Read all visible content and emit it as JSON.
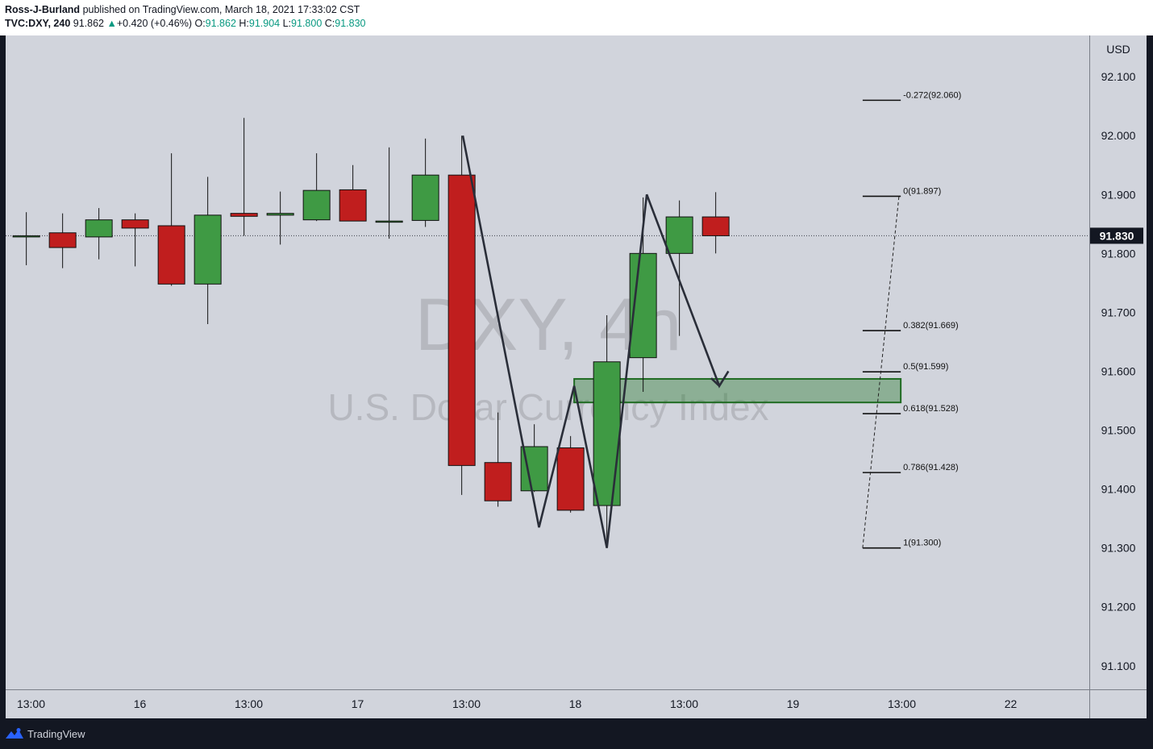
{
  "header": {
    "author": "Ross-J-Burland",
    "published_text": "published on TradingView.com, March 18, 2021 17:33:02 CST",
    "symbol": "TVC:DXY, 240",
    "last": "91.862",
    "change_arrow": "▲",
    "change": "+0.420 (+0.46%)",
    "o_label": "O:",
    "o_value": "91.862",
    "h_label": "H:",
    "h_value": "91.904",
    "l_label": "L:",
    "l_value": "91.800",
    "c_label": "C:",
    "c_value": "91.830"
  },
  "watermark": {
    "symbol": "DXY, 4h",
    "name": "U.S. Dollar Currency Index"
  },
  "footer": {
    "brand": "TradingView",
    "logo_icon": "tradingview-logo-icon"
  },
  "chart_data": {
    "type": "candlestick",
    "currency": "USD",
    "ylim": [
      91.06,
      92.17
    ],
    "y_ticks": [
      "91.100",
      "91.200",
      "91.300",
      "91.400",
      "91.500",
      "91.600",
      "91.700",
      "91.800",
      "91.900",
      "92.000",
      "92.100"
    ],
    "x_ticks": [
      "13:00",
      "16",
      "13:00",
      "17",
      "13:00",
      "18",
      "13:00",
      "19",
      "13:00",
      "22"
    ],
    "last_price_label": "91.830",
    "last_price": 91.83,
    "colors": {
      "up": "#3f9a44",
      "down": "#c01e1e",
      "fib": "#111111",
      "zone": "#2e7d32"
    },
    "candles": [
      {
        "slot": -0.13,
        "o": 91.83,
        "h": 91.87,
        "l": 91.78,
        "c": 91.83
      },
      {
        "slot": 0.87,
        "o": 91.835,
        "h": 91.868,
        "l": 91.775,
        "c": 91.81
      },
      {
        "slot": 1.87,
        "o": 91.828,
        "h": 91.877,
        "l": 91.79,
        "c": 91.857
      },
      {
        "slot": 2.87,
        "o": 91.857,
        "h": 91.868,
        "l": 91.778,
        "c": 91.843
      },
      {
        "slot": 3.87,
        "o": 91.847,
        "h": 91.97,
        "l": 91.745,
        "c": 91.748
      },
      {
        "slot": 4.87,
        "o": 91.748,
        "h": 91.93,
        "l": 91.68,
        "c": 91.865
      },
      {
        "slot": 5.87,
        "o": 91.868,
        "h": 92.03,
        "l": 91.83,
        "c": 91.863
      },
      {
        "slot": 6.87,
        "o": 91.865,
        "h": 91.905,
        "l": 91.815,
        "c": 91.868
      },
      {
        "slot": 7.87,
        "o": 91.857,
        "h": 91.97,
        "l": 91.855,
        "c": 91.907
      },
      {
        "slot": 8.87,
        "o": 91.908,
        "h": 91.95,
        "l": 91.855,
        "c": 91.855
      },
      {
        "slot": 9.87,
        "o": 91.855,
        "h": 91.98,
        "l": 91.825,
        "c": 91.855
      },
      {
        "slot": 10.87,
        "o": 91.856,
        "h": 91.995,
        "l": 91.845,
        "c": 91.933
      },
      {
        "slot": 11.87,
        "o": 91.933,
        "h": 92.0,
        "l": 91.39,
        "c": 91.44
      },
      {
        "slot": 12.87,
        "o": 91.445,
        "h": 91.53,
        "l": 91.37,
        "c": 91.38
      },
      {
        "slot": 13.87,
        "o": 91.397,
        "h": 91.51,
        "l": 91.395,
        "c": 91.472
      },
      {
        "slot": 14.87,
        "o": 91.47,
        "h": 91.49,
        "l": 91.36,
        "c": 91.364
      },
      {
        "slot": 15.87,
        "o": 91.372,
        "h": 91.695,
        "l": 91.3,
        "c": 91.616
      },
      {
        "slot": 16.87,
        "o": 91.623,
        "h": 91.895,
        "l": 91.565,
        "c": 91.8
      },
      {
        "slot": 17.87,
        "o": 91.8,
        "h": 91.89,
        "l": 91.66,
        "c": 91.862
      },
      {
        "slot": 18.87,
        "o": 91.862,
        "h": 91.904,
        "l": 91.8,
        "c": 91.83
      }
    ],
    "zigzag": [
      {
        "slot": 11.9,
        "price": 92.0
      },
      {
        "slot": 14.0,
        "price": 91.335
      },
      {
        "slot": 14.97,
        "price": 91.575
      },
      {
        "slot": 15.87,
        "price": 91.3
      },
      {
        "slot": 16.97,
        "price": 91.9
      },
      {
        "slot": 18.97,
        "price": 91.575
      },
      {
        "slot": 19.22,
        "price": 91.6
      }
    ],
    "zone": {
      "slot_start": 14.97,
      "slot_end": 23.97,
      "top": 91.587,
      "bottom": 91.547
    },
    "fib_levels": [
      {
        "label": "-0.272(92.060)",
        "price": 92.06
      },
      {
        "label": "0(91.897)",
        "price": 91.897
      },
      {
        "label": "0.382(91.669)",
        "price": 91.669
      },
      {
        "label": "0.5(91.599)",
        "price": 91.599
      },
      {
        "label": "0.618(91.528)",
        "price": 91.528
      },
      {
        "label": "0.786(91.428)",
        "price": 91.428
      },
      {
        "label": "1(91.300)",
        "price": 91.3
      }
    ],
    "fib_slot_range": [
      22.92,
      23.97
    ],
    "fib_trend": {
      "from": {
        "slot": 22.92,
        "price": 91.3
      },
      "to": {
        "slot": 23.92,
        "price": 91.897
      }
    }
  }
}
